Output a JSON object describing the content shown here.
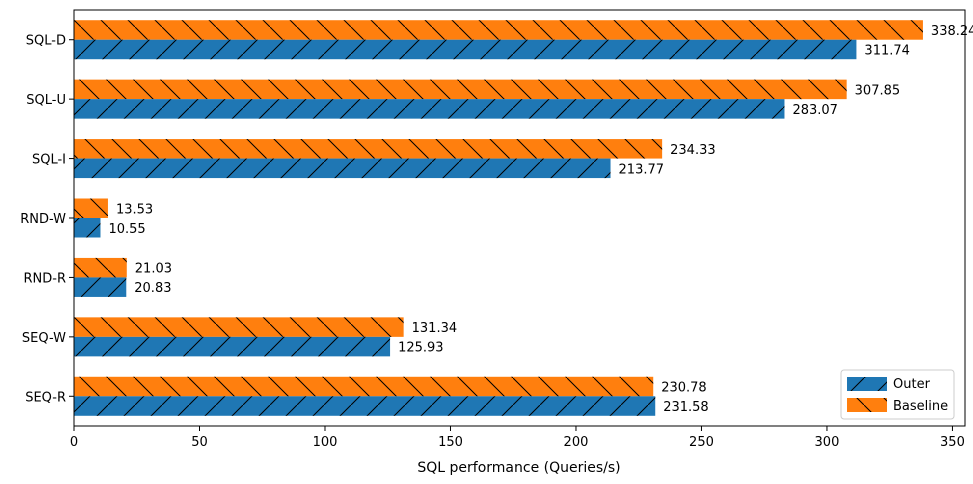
{
  "chart_data": {
    "type": "bar",
    "orientation": "horizontal",
    "categories": [
      "SQL-D",
      "SQL-U",
      "SQL-I",
      "RND-W",
      "RND-R",
      "SEQ-W",
      "SEQ-R"
    ],
    "series": [
      {
        "name": "Outer",
        "values": [
          311.74,
          283.07,
          213.77,
          10.55,
          20.83,
          125.93,
          231.58
        ],
        "color": "#1f77b4",
        "hatch": "/"
      },
      {
        "name": "Baseline",
        "values": [
          338.24,
          307.85,
          234.33,
          13.53,
          21.03,
          131.34,
          230.78
        ],
        "color": "#ff7f0e",
        "hatch": "\\"
      }
    ],
    "value_labels": {
      "Outer": [
        "311.74",
        "283.07",
        "213.77",
        "10.55",
        "20.83",
        "125.93",
        "231.58"
      ],
      "Baseline": [
        "338.24",
        "307.85",
        "234.33",
        "13.53",
        "21.03",
        "131.34",
        "230.78"
      ]
    },
    "xlabel": "SQL performance (Queries/s)",
    "ylabel": "",
    "title": "",
    "xlim": [
      0,
      355
    ],
    "xticks": [
      0,
      50,
      100,
      150,
      200,
      250,
      300,
      350
    ],
    "grid": false,
    "legend": {
      "position": "bottom-right",
      "entries": [
        "Outer",
        "Baseline"
      ]
    }
  }
}
